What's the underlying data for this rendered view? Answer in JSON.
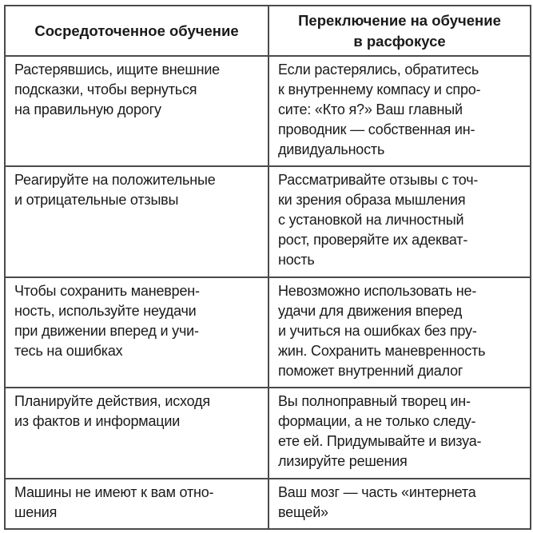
{
  "table": {
    "headers": [
      [
        "Сосредоточенное обучение"
      ],
      [
        "Переключение на обучение",
        "в расфокусе"
      ]
    ],
    "rows": [
      {
        "focused": [
          "Растерявшись, ищите внешние",
          "подсказки, чтобы вернуться",
          "на правильную дорогу"
        ],
        "defocused": [
          "Если растерялись, обратитесь",
          "к внутреннему компасу и спро-",
          "сите: «Кто я?» Ваш главный",
          "проводник — собственная ин-",
          "дивидуальность"
        ]
      },
      {
        "focused": [
          "Реагируйте на положительные",
          "и отрицательные отзывы"
        ],
        "defocused": [
          "Рассматривайте отзывы с точ-",
          "ки зрения образа мышления",
          "с установкой на личностный",
          "рост, проверяйте их адекват-",
          "ность"
        ]
      },
      {
        "focused": [
          "Чтобы сохранить маневрен-",
          "ность, используйте неудачи",
          "при движении вперед и учи-",
          "тесь на ошибках"
        ],
        "defocused": [
          "Невозможно использовать не-",
          "удачи для движения вперед",
          "и учиться на ошибках без пру-",
          "жин. Сохранить маневренность",
          "поможет внутренний диалог"
        ]
      },
      {
        "focused": [
          "Планируйте действия, исходя",
          "из фактов и информации"
        ],
        "defocused": [
          "Вы полноправный творец ин-",
          "формации, а не только следу-",
          "ете ей. Придумывайте и визуа-",
          "лизируйте решения"
        ]
      },
      {
        "focused": [
          "Машины не имеют к вам отно-",
          "шения"
        ],
        "defocused": [
          "Ваш мозг — часть «интернета",
          "вещей»"
        ]
      }
    ]
  }
}
